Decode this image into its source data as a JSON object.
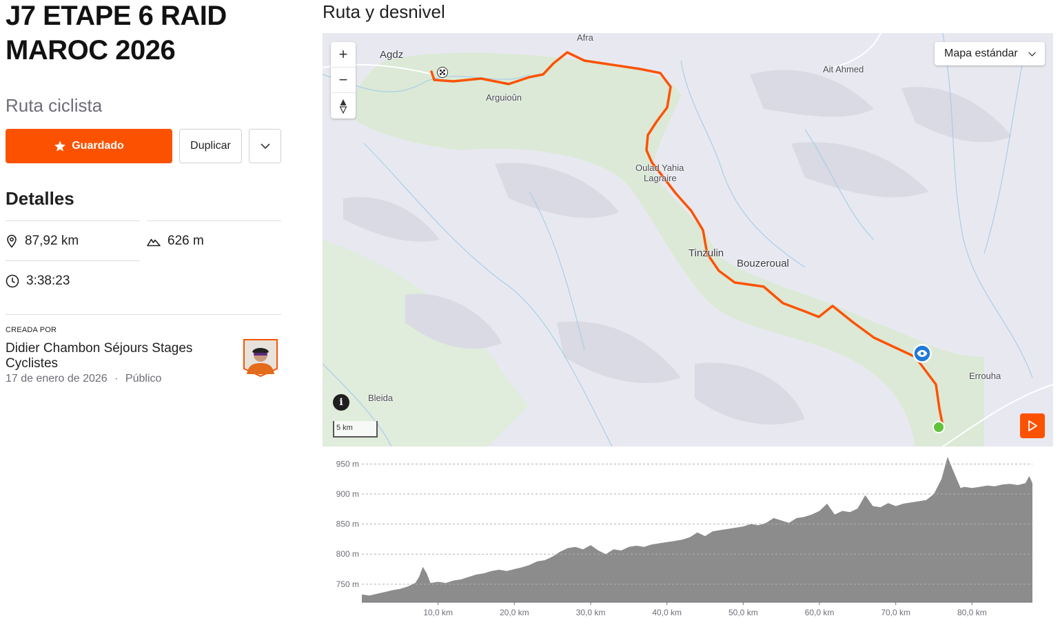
{
  "route": {
    "title": "J7 ETAPE 6 RAID MAROC 2026",
    "type_label": "Ruta ciclista"
  },
  "actions": {
    "saved_label": "Guardado",
    "duplicate_label": "Duplicar"
  },
  "details": {
    "heading": "Detalles",
    "distance": "87,92 km",
    "elevation_gain": "626 m",
    "time": "3:38:23"
  },
  "creator": {
    "label": "CREADA POR",
    "name": "Didier Chambon Séjours Stages Cyclistes",
    "date": "17 de enero de 2026",
    "separator": "·",
    "visibility": "Público"
  },
  "map": {
    "section_title": "Ruta y desnivel",
    "map_type": "Mapa estándar",
    "scale": "5 km",
    "zoom_in": "+",
    "zoom_out": "−",
    "places": {
      "agdz": "Agdz",
      "afra": "Afra",
      "arguioun": "Arguioûn",
      "ait_ahmed": "Ait Ahmed",
      "oulad_yahia": "Oulad Yahia",
      "lagraire": "Lagraire",
      "tinzulin": "Tinzulin",
      "bouzeroual": "Bouzeroual",
      "errouha": "Errouha",
      "bleida": "Bleida"
    },
    "route_color": "#fc5200"
  },
  "chart_data": {
    "type": "area",
    "xlabel": "",
    "ylabel": "",
    "xlim": [
      0,
      87.92
    ],
    "ylim": [
      720,
      970
    ],
    "x_ticks": [
      "10,0 km",
      "20,0 km",
      "30,0 km",
      "40,0 km",
      "50,0 km",
      "60,0 km",
      "70,0 km",
      "80,0 km"
    ],
    "x_tick_values": [
      10,
      20,
      30,
      40,
      50,
      60,
      70,
      80
    ],
    "y_ticks": [
      "950 m",
      "900 m",
      "850 m",
      "800 m",
      "750 m"
    ],
    "y_tick_values": [
      950,
      900,
      850,
      800,
      750
    ],
    "fill_color": "#8c8c8c",
    "x": [
      0,
      1,
      2,
      3,
      4,
      5,
      6,
      7,
      7.5,
      8,
      8.5,
      9,
      10,
      11,
      12,
      13,
      14,
      15,
      16,
      17,
      18,
      19,
      20,
      21,
      22,
      23,
      24,
      25,
      26,
      27,
      28,
      29,
      30,
      31,
      32,
      33,
      34,
      35,
      36,
      37,
      38,
      39,
      40,
      41,
      42,
      43,
      44,
      45,
      46,
      47,
      48,
      49,
      50,
      51,
      52,
      53,
      54,
      55,
      56,
      57,
      58,
      59,
      60,
      61,
      62,
      63,
      64,
      65,
      66,
      67,
      68,
      69,
      70,
      71,
      72,
      73,
      74,
      75,
      76,
      76.8,
      77.5,
      78,
      78.5,
      79,
      80,
      81,
      82,
      83,
      84,
      85,
      86,
      87,
      87.5,
      87.92
    ],
    "y": [
      733,
      731,
      734,
      737,
      740,
      742,
      746,
      752,
      762,
      779,
      768,
      752,
      754,
      752,
      756,
      758,
      762,
      766,
      768,
      772,
      774,
      772,
      775,
      778,
      782,
      788,
      790,
      796,
      804,
      810,
      812,
      808,
      815,
      806,
      800,
      808,
      806,
      812,
      814,
      812,
      816,
      818,
      820,
      822,
      824,
      828,
      836,
      830,
      838,
      840,
      842,
      844,
      846,
      850,
      848,
      852,
      860,
      856,
      852,
      860,
      862,
      866,
      872,
      884,
      866,
      872,
      870,
      876,
      898,
      880,
      878,
      885,
      880,
      884,
      886,
      888,
      890,
      900,
      925,
      962,
      940,
      925,
      910,
      912,
      910,
      912,
      914,
      913,
      916,
      917,
      915,
      918,
      930,
      918
    ]
  }
}
